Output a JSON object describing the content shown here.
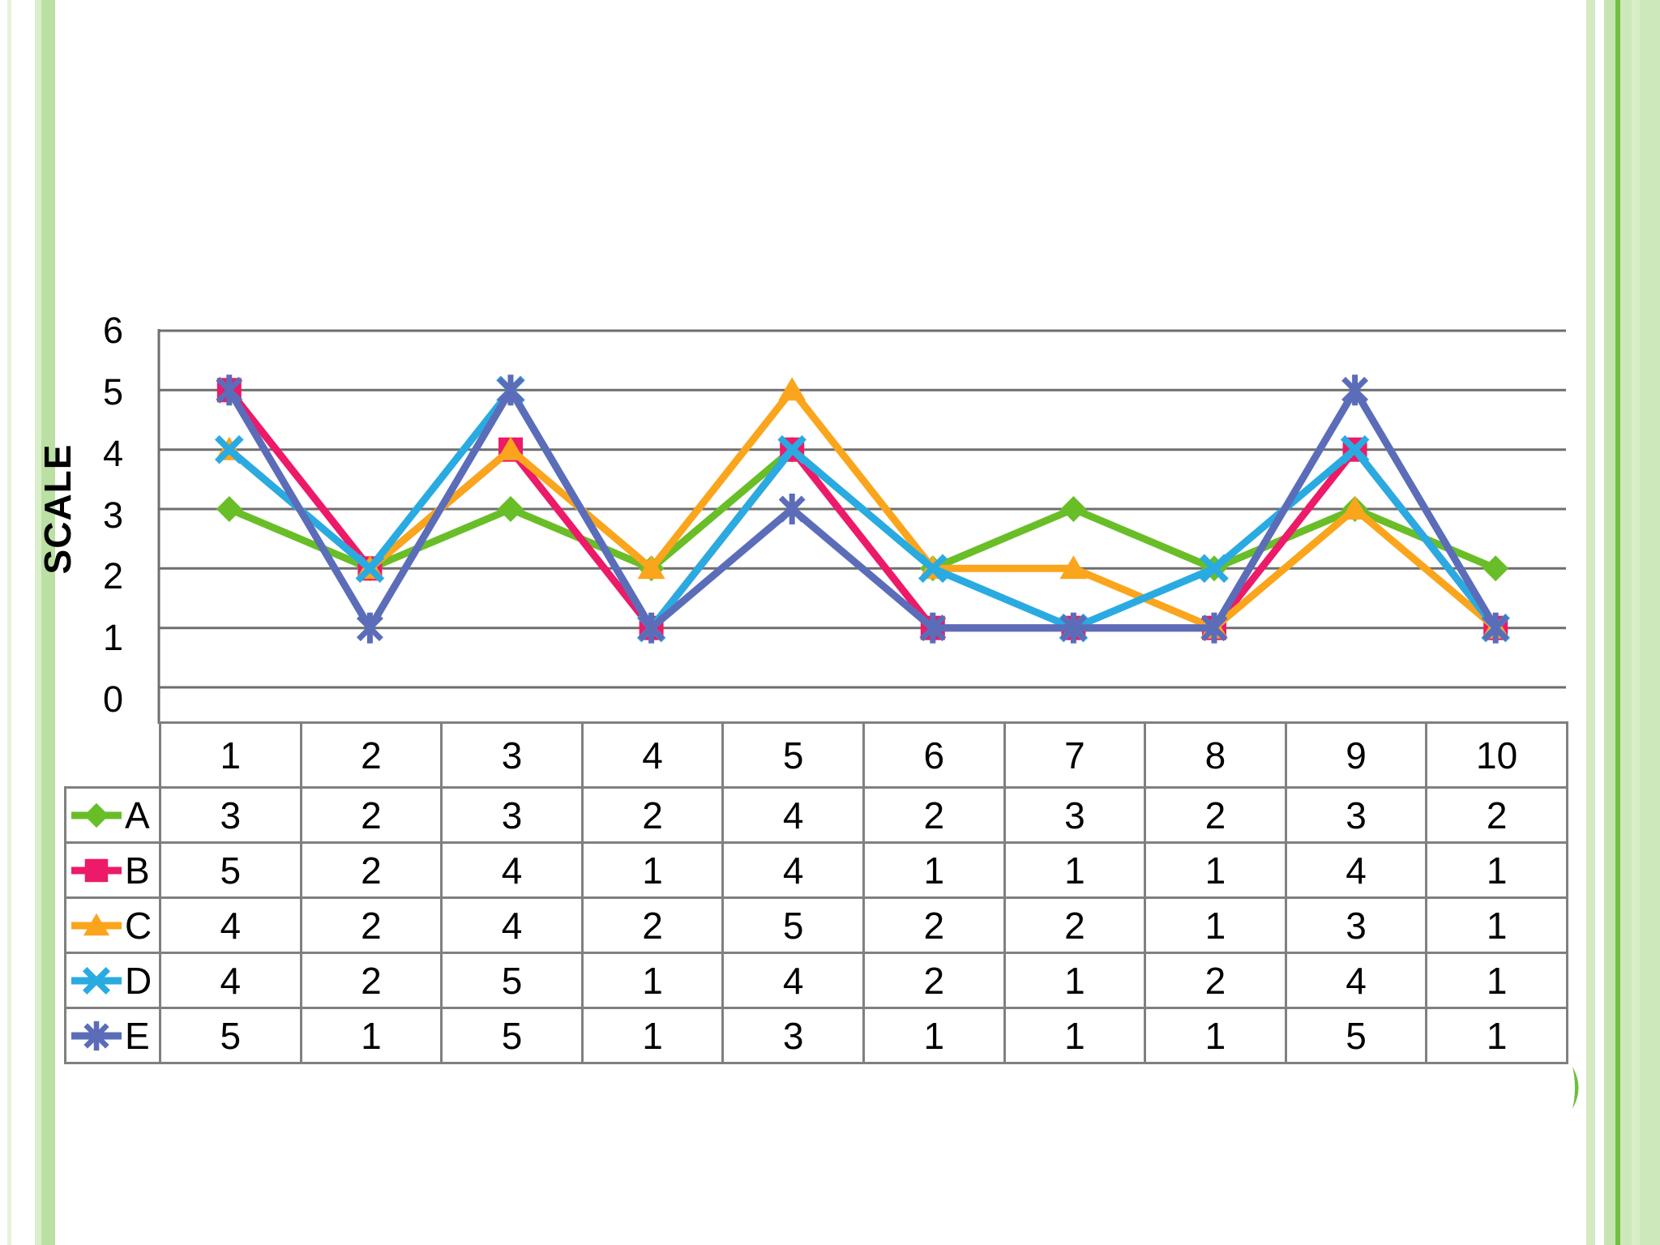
{
  "slide": {
    "background": "#ffffff"
  },
  "theme": {
    "border_green_light": "#cde8ba",
    "border_green_bright": "#74bf40",
    "gridline_color": "#6e6e6e",
    "table_border_color": "#808080",
    "text_color": "#000000"
  },
  "chart_data": {
    "type": "line",
    "title": "",
    "xlabel": "",
    "ylabel": "SCALE",
    "ylim": [
      0,
      6
    ],
    "yticks": [
      0,
      1,
      2,
      3,
      4,
      5,
      6
    ],
    "grid": "horizontal",
    "legend_position": "table-left",
    "categories": [
      "1",
      "2",
      "3",
      "4",
      "5",
      "6",
      "7",
      "8",
      "9",
      "10"
    ],
    "series": [
      {
        "name": "A",
        "marker": "diamond",
        "color": "#69BE28",
        "values": [
          3,
          2,
          3,
          2,
          4,
          2,
          3,
          2,
          3,
          2
        ]
      },
      {
        "name": "B",
        "marker": "square",
        "color": "#EC1A68",
        "values": [
          5,
          2,
          4,
          1,
          4,
          1,
          1,
          1,
          4,
          1
        ]
      },
      {
        "name": "C",
        "marker": "triangle",
        "color": "#FAA51C",
        "values": [
          4,
          2,
          4,
          2,
          5,
          2,
          2,
          1,
          3,
          1
        ]
      },
      {
        "name": "D",
        "marker": "x",
        "color": "#29ABE2",
        "values": [
          4,
          2,
          5,
          1,
          4,
          2,
          1,
          2,
          4,
          1
        ]
      },
      {
        "name": "E",
        "marker": "asterisk",
        "color": "#5B6DB9",
        "values": [
          5,
          1,
          5,
          1,
          3,
          1,
          1,
          1,
          5,
          1
        ]
      }
    ]
  }
}
